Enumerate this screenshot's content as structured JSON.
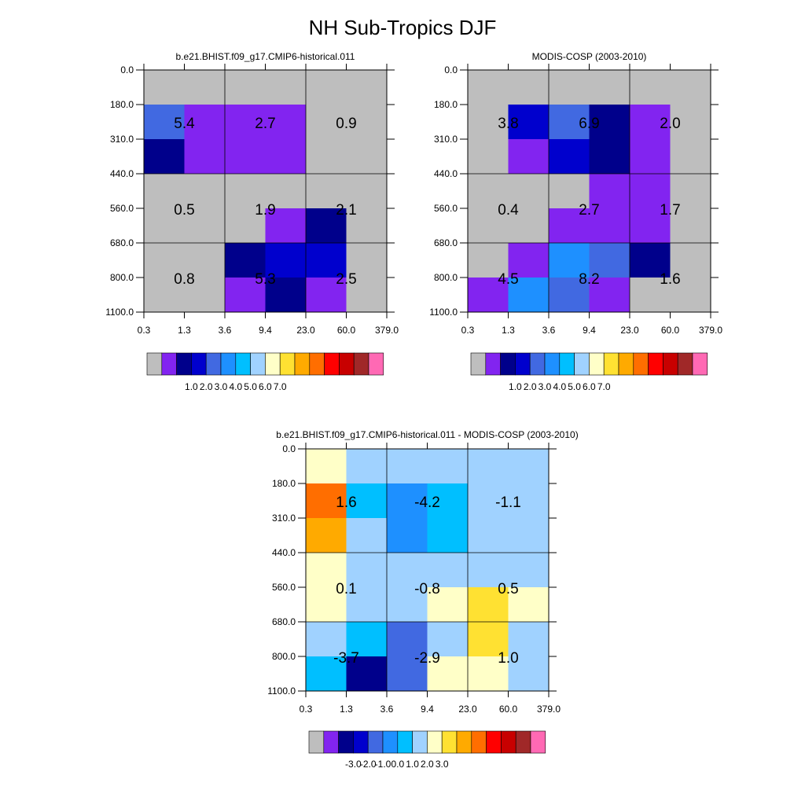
{
  "page_title": "NH Sub-Tropics DJF",
  "palette_colors": [
    "#bebebe",
    "#8224f0",
    "#00008b",
    "#0000cd",
    "#4169e1",
    "#1e90ff",
    "#00bfff",
    "#a0d2ff",
    "#ffffc8",
    "#ffe132",
    "#ffaa00",
    "#ff6e00",
    "#ff0000",
    "#c80000",
    "#a02828",
    "#ff69b4"
  ],
  "chart_data": [
    {
      "type": "heatmap",
      "title": "b.e21.BHIST.f09_g17.CMIP6-historical.011",
      "x_tick_labels": [
        "0.3",
        "1.3",
        "3.6",
        "9.4",
        "23.0",
        "60.0",
        "379.0"
      ],
      "y_tick_labels": [
        "0.0",
        "180.0",
        "310.0",
        "440.0",
        "560.0",
        "680.0",
        "800.0",
        "1100.0"
      ],
      "grid": true,
      "cells": [
        [
          0,
          0,
          0,
          0,
          0,
          0
        ],
        [
          4,
          1,
          1,
          1,
          0,
          0
        ],
        [
          2,
          1,
          1,
          1,
          0,
          0
        ],
        [
          0,
          0,
          0,
          0,
          0,
          0
        ],
        [
          0,
          0,
          0,
          1,
          2,
          0
        ],
        [
          0,
          0,
          2,
          3,
          3,
          0
        ],
        [
          0,
          0,
          1,
          2,
          1,
          0
        ]
      ],
      "annotations": [
        [
          "5.4",
          "2.7",
          "0.9"
        ],
        [
          "0.5",
          "1.9",
          "2.1"
        ],
        [
          "0.8",
          "5.3",
          "2.5"
        ]
      ],
      "colorbar": {
        "tick_labels": [
          "1.0",
          "2.0",
          "3.0",
          "4.0",
          "5.0",
          "6.0",
          "7.0"
        ],
        "n_boxes": 16
      }
    },
    {
      "type": "heatmap",
      "title": "MODIS-COSP (2003-2010)",
      "x_tick_labels": [
        "0.3",
        "1.3",
        "3.6",
        "9.4",
        "23.0",
        "60.0",
        "379.0"
      ],
      "y_tick_labels": [
        "0.0",
        "180.0",
        "310.0",
        "440.0",
        "560.0",
        "680.0",
        "800.0",
        "1100.0"
      ],
      "grid": true,
      "cells": [
        [
          0,
          0,
          0,
          0,
          0,
          0
        ],
        [
          0,
          3,
          4,
          2,
          1,
          0
        ],
        [
          0,
          1,
          3,
          2,
          1,
          0
        ],
        [
          0,
          0,
          0,
          1,
          1,
          0
        ],
        [
          0,
          0,
          1,
          1,
          1,
          0
        ],
        [
          0,
          1,
          5,
          4,
          2,
          0
        ],
        [
          1,
          5,
          4,
          1,
          0,
          0
        ]
      ],
      "annotations": [
        [
          "3.8",
          "6.9",
          "2.0"
        ],
        [
          "0.4",
          "2.7",
          "1.7"
        ],
        [
          "4.5",
          "8.2",
          "1.6"
        ]
      ],
      "colorbar": {
        "tick_labels": [
          "1.0",
          "2.0",
          "3.0",
          "4.0",
          "5.0",
          "6.0",
          "7.0"
        ],
        "n_boxes": 16
      }
    },
    {
      "type": "heatmap",
      "title": "b.e21.BHIST.f09_g17.CMIP6-historical.011 - MODIS-COSP (2003-2010)",
      "x_tick_labels": [
        "0.3",
        "1.3",
        "3.6",
        "9.4",
        "23.0",
        "60.0",
        "379.0"
      ],
      "y_tick_labels": [
        "0.0",
        "180.0",
        "310.0",
        "440.0",
        "560.0",
        "680.0",
        "800.0",
        "1100.0"
      ],
      "grid": true,
      "cells": [
        [
          8,
          7,
          7,
          7,
          7,
          7
        ],
        [
          11,
          6,
          5,
          6,
          7,
          7
        ],
        [
          10,
          7,
          5,
          6,
          7,
          7
        ],
        [
          8,
          7,
          7,
          7,
          7,
          7
        ],
        [
          8,
          7,
          7,
          8,
          9,
          8
        ],
        [
          7,
          6,
          4,
          7,
          9,
          7
        ],
        [
          6,
          2,
          4,
          8,
          8,
          7
        ]
      ],
      "annotations": [
        [
          "1.6",
          "-4.2",
          "-1.1"
        ],
        [
          "0.1",
          "-0.8",
          "0.5"
        ],
        [
          "-3.7",
          "-2.9",
          "1.0"
        ]
      ],
      "colorbar": {
        "tick_labels": [
          "-3.0",
          "-2.0",
          "-1.0",
          "0.0",
          "1.0",
          "2.0",
          "3.0"
        ],
        "n_boxes": 16
      }
    }
  ]
}
